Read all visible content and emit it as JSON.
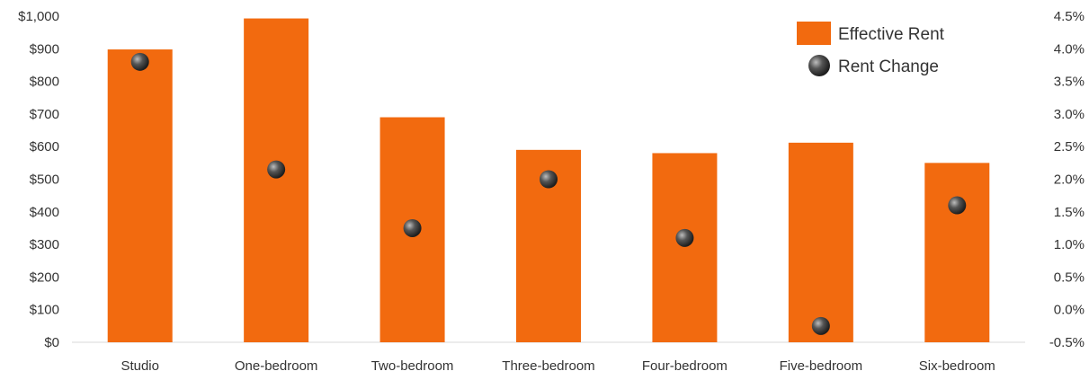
{
  "chart_data": {
    "type": "bar",
    "categories": [
      "Studio",
      "One-bedroom",
      "Two-bedroom",
      "Three-bedroom",
      "Four-bedroom",
      "Five-bedroom",
      "Six-bedroom"
    ],
    "series": [
      {
        "name": "Effective Rent",
        "type": "bar",
        "axis": "left",
        "values": [
          898,
          993,
          690,
          590,
          580,
          612,
          550
        ],
        "color": "#F26A0F"
      },
      {
        "name": "Rent Change",
        "type": "scatter",
        "axis": "right",
        "values": [
          3.8,
          2.15,
          1.25,
          2.0,
          1.1,
          -0.25,
          1.6
        ],
        "color": "#3f3f3f"
      }
    ],
    "y_left": {
      "min": 0,
      "max": 1000,
      "step": 100,
      "tick_labels": [
        "$0",
        "$100",
        "$200",
        "$300",
        "$400",
        "$500",
        "$600",
        "$700",
        "$800",
        "$900",
        "$1,000"
      ]
    },
    "y_right": {
      "min": -0.5,
      "max": 4.5,
      "step": 0.5,
      "tick_labels": [
        "-0.5%",
        "0.0%",
        "0.5%",
        "1.0%",
        "1.5%",
        "2.0%",
        "2.5%",
        "3.0%",
        "3.5%",
        "4.0%",
        "4.5%"
      ]
    },
    "grid": false,
    "legend": {
      "position": "top-right",
      "entries": [
        "Effective Rent",
        "Rent Change"
      ]
    }
  }
}
